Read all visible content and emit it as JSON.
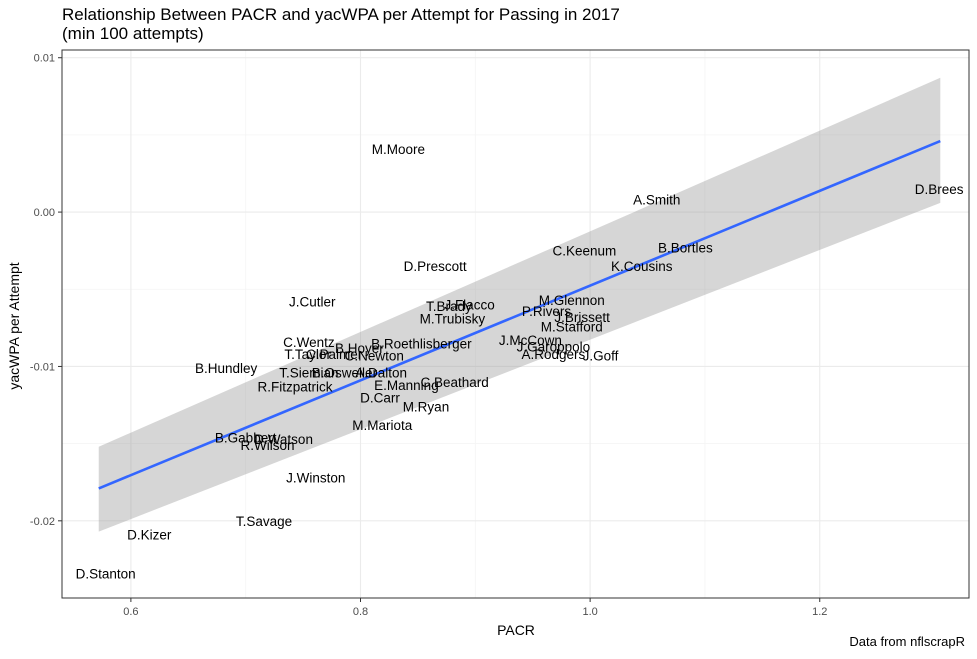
{
  "chart_data": {
    "type": "scatter",
    "title": "Relationship Between PACR and yacWPA per Attempt for Passing in 2017",
    "subtitle": "(min 100 attempts)",
    "xlabel": "PACR",
    "ylabel": "yacWPA per Attempt",
    "caption": "Data from nflscrapR",
    "xlim": [
      0.54,
      1.33
    ],
    "ylim": [
      -0.025,
      0.0105
    ],
    "x_ticks": [
      0.6,
      0.8,
      1.0,
      1.2
    ],
    "x_tick_labels": [
      "0.6",
      "0.8",
      "1.0",
      "1.2"
    ],
    "y_ticks": [
      -0.02,
      -0.01,
      0.0,
      0.01
    ],
    "y_tick_labels": [
      "-0.02",
      "-0.01",
      "0.00",
      "0.01"
    ],
    "grid": true,
    "colors": {
      "fit_line": "#3366FF",
      "ribbon": "#999999",
      "text": "#000000",
      "grid": "#ebebeb"
    },
    "fit": {
      "type": "linear",
      "x": [
        0.572,
        1.305
      ],
      "y": [
        -0.0179,
        0.0046
      ],
      "ci_upper": [
        -0.0152,
        0.0087
      ],
      "ci_lower": [
        -0.0207,
        0.0006
      ]
    },
    "points": [
      {
        "label": "D.Brees",
        "x": 1.304,
        "y": 0.0015
      },
      {
        "label": "A.Smith",
        "x": 1.058,
        "y": 0.0008
      },
      {
        "label": "M.Moore",
        "x": 0.833,
        "y": 0.0041
      },
      {
        "label": "B.Bortles",
        "x": 1.083,
        "y": -0.0023
      },
      {
        "label": "C.Keenum",
        "x": 0.995,
        "y": -0.0025
      },
      {
        "label": "K.Cousins",
        "x": 1.045,
        "y": -0.0035
      },
      {
        "label": "D.Prescott",
        "x": 0.865,
        "y": -0.0035
      },
      {
        "label": "J.Cutler",
        "x": 0.758,
        "y": -0.0058
      },
      {
        "label": "J.Flacco",
        "x": 0.895,
        "y": -0.006
      },
      {
        "label": "T.Brady",
        "x": 0.877,
        "y": -0.0061
      },
      {
        "label": "M.Glennon",
        "x": 0.984,
        "y": -0.0057
      },
      {
        "label": "P.Rivers",
        "x": 0.962,
        "y": -0.0064
      },
      {
        "label": "J.Brissett",
        "x": 0.993,
        "y": -0.0068
      },
      {
        "label": "M.Trubisky",
        "x": 0.88,
        "y": -0.0069
      },
      {
        "label": "M.Stafford",
        "x": 0.984,
        "y": -0.0074
      },
      {
        "label": "J.McCown",
        "x": 0.948,
        "y": -0.0083
      },
      {
        "label": "J.Garoppolo",
        "x": 0.968,
        "y": -0.0087
      },
      {
        "label": "A.Rodgers",
        "x": 0.968,
        "y": -0.0092
      },
      {
        "label": "J.Goff",
        "x": 1.009,
        "y": -0.0093
      },
      {
        "label": "C.Wentz",
        "x": 0.755,
        "y": -0.0084
      },
      {
        "label": "B.Roethlisberger",
        "x": 0.853,
        "y": -0.0085
      },
      {
        "label": "B.Hoyer",
        "x": 0.799,
        "y": -0.0088
      },
      {
        "label": "T.Taylor",
        "x": 0.754,
        "y": -0.0092
      },
      {
        "label": "C.Palmer",
        "x": 0.777,
        "y": -0.0092
      },
      {
        "label": "C.Newton",
        "x": 0.812,
        "y": -0.0093
      },
      {
        "label": "B.Hundley",
        "x": 0.683,
        "y": -0.0101
      },
      {
        "label": "T.Siemian",
        "x": 0.755,
        "y": -0.0104
      },
      {
        "label": "B.Osweiler",
        "x": 0.786,
        "y": -0.0104
      },
      {
        "label": "A.Dalton",
        "x": 0.818,
        "y": -0.0104
      },
      {
        "label": "R.Fitzpatrick",
        "x": 0.743,
        "y": -0.0113
      },
      {
        "label": "E.Manning",
        "x": 0.84,
        "y": -0.0112
      },
      {
        "label": "C.Beathard",
        "x": 0.882,
        "y": -0.011
      },
      {
        "label": "D.Carr",
        "x": 0.817,
        "y": -0.012
      },
      {
        "label": "M.Ryan",
        "x": 0.857,
        "y": -0.0126
      },
      {
        "label": "M.Mariota",
        "x": 0.819,
        "y": -0.0138
      },
      {
        "label": "B.Gabbert",
        "x": 0.7,
        "y": -0.0146
      },
      {
        "label": "D.Watson",
        "x": 0.733,
        "y": -0.0147
      },
      {
        "label": "R.Wilson",
        "x": 0.719,
        "y": -0.0151
      },
      {
        "label": "J.Winston",
        "x": 0.761,
        "y": -0.0172
      },
      {
        "label": "T.Savage",
        "x": 0.716,
        "y": -0.02
      },
      {
        "label": "D.Kizer",
        "x": 0.616,
        "y": -0.0209
      },
      {
        "label": "D.Stanton",
        "x": 0.578,
        "y": -0.0234
      }
    ]
  }
}
